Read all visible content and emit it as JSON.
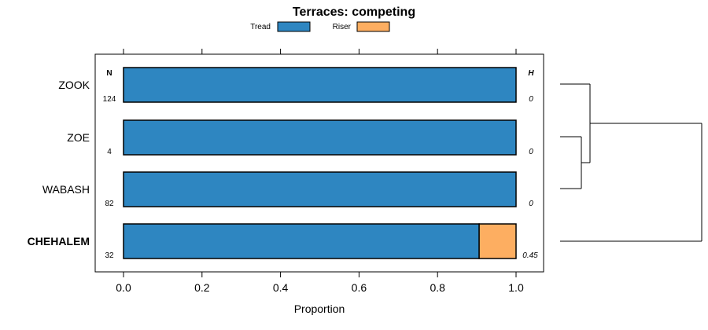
{
  "chart_data": {
    "type": "bar",
    "orientation": "horizontal",
    "stacked": true,
    "title": "Terraces: competing",
    "xlabel": "Proportion",
    "ylabel": "",
    "xlim": [
      0,
      1
    ],
    "xticks": [
      "0.0",
      "0.2",
      "0.4",
      "0.6",
      "0.8",
      "1.0"
    ],
    "categories": [
      "ZOOK",
      "ZOE",
      "WABASH",
      "CHEHALEM"
    ],
    "highlighted_category": "CHEHALEM",
    "series": [
      {
        "name": "Tread",
        "color": "#2e86c1",
        "values": [
          1.0,
          1.0,
          1.0,
          0.906
        ]
      },
      {
        "name": "Riser",
        "color": "#fdae61",
        "values": [
          0.0,
          0.0,
          0.0,
          0.094
        ]
      }
    ],
    "n_header": "N",
    "h_header": "H",
    "n_values": [
      "124",
      "4",
      "82",
      "32"
    ],
    "h_values": [
      "0",
      "0",
      "0",
      "0.45"
    ],
    "legend_position": "top",
    "dendrogram": true
  }
}
